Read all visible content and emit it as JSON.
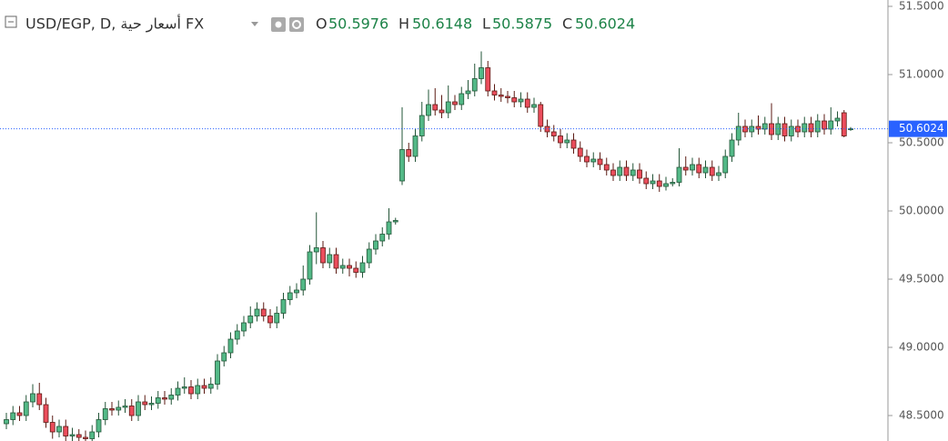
{
  "chart_data": {
    "type": "candlestick",
    "title": "USD/EGP, D, أسعار حية FX",
    "ohlc_labels": [
      "O",
      "H",
      "L",
      "C"
    ],
    "up_color": "#53b987",
    "up_border": "#225437",
    "down_color": "#eb4d5c",
    "down_border": "#5b1a13",
    "price_line_color": "#2962ff",
    "ylim": [
      48.3133,
      51.5467
    ],
    "yticks": [
      {
        "value": 48.5,
        "label": "48.5000"
      },
      {
        "value": 49.0,
        "label": "49.0000"
      },
      {
        "value": 49.5,
        "label": "49.5000"
      },
      {
        "value": 50.0,
        "label": "50.0000"
      },
      {
        "value": 50.5,
        "label": "50.5000"
      },
      {
        "value": 51.0,
        "label": "51.0000"
      },
      {
        "value": 51.5,
        "label": "51.5000"
      }
    ],
    "open": [
      48.44,
      48.47,
      48.52,
      48.5,
      48.6,
      48.66,
      48.58,
      48.45,
      48.38,
      48.42,
      48.35,
      48.36,
      48.34,
      48.33,
      48.38,
      48.47,
      48.55,
      48.54,
      48.56,
      48.57,
      48.5,
      48.6,
      48.58,
      48.59,
      48.63,
      48.62,
      48.65,
      48.7,
      48.71,
      48.66,
      48.72,
      48.7,
      48.73,
      48.9,
      48.96,
      49.06,
      49.12,
      49.18,
      49.23,
      49.28,
      49.23,
      49.18,
      49.25,
      49.35,
      49.4,
      49.42,
      49.5,
      49.7,
      49.73,
      49.62,
      49.68,
      49.58,
      49.6,
      49.58,
      49.55,
      49.62,
      49.72,
      49.78,
      49.83,
      49.92,
      50.22,
      50.45,
      50.4,
      50.55,
      50.7,
      50.78,
      50.74,
      50.72,
      50.8,
      50.78,
      50.86,
      50.88,
      50.97,
      51.05,
      50.88,
      50.85,
      50.84,
      50.83,
      50.8,
      50.82,
      50.76,
      50.78,
      50.62,
      50.58,
      50.55,
      50.5,
      50.52,
      50.46,
      50.4,
      50.36,
      50.38,
      50.34,
      50.3,
      50.26,
      50.32,
      50.26,
      50.3,
      50.24,
      50.2,
      50.22,
      50.18,
      50.2,
      50.21,
      50.32,
      50.3,
      50.34,
      50.28,
      50.32,
      50.26,
      50.28,
      50.4,
      50.52,
      50.62,
      50.58,
      50.62,
      50.6,
      50.64,
      50.56,
      50.64,
      50.55,
      50.62,
      50.58,
      50.64,
      50.58,
      50.66,
      50.6,
      50.66,
      50.72,
      50.5976
    ],
    "high": [
      48.52,
      48.57,
      48.57,
      48.65,
      48.73,
      48.74,
      48.63,
      48.5,
      48.47,
      48.47,
      48.41,
      48.4,
      48.39,
      48.43,
      48.52,
      48.6,
      48.6,
      48.61,
      48.62,
      48.62,
      48.65,
      48.65,
      48.64,
      48.68,
      48.68,
      48.7,
      48.75,
      48.78,
      48.76,
      48.77,
      48.77,
      48.78,
      48.95,
      49.01,
      49.11,
      49.17,
      49.23,
      49.3,
      49.33,
      49.33,
      49.28,
      49.3,
      49.4,
      49.45,
      49.47,
      49.6,
      49.75,
      49.99,
      49.78,
      49.73,
      49.73,
      49.65,
      49.65,
      49.63,
      49.67,
      49.77,
      49.83,
      49.88,
      50.02,
      49.95,
      50.76,
      50.5,
      50.6,
      50.8,
      50.89,
      50.9,
      50.85,
      50.92,
      50.85,
      50.91,
      50.96,
      51.08,
      51.17,
      51.1,
      50.93,
      50.9,
      50.88,
      50.88,
      50.87,
      50.87,
      50.83,
      50.8,
      50.67,
      50.63,
      50.6,
      50.57,
      50.57,
      50.51,
      50.45,
      50.43,
      50.43,
      50.39,
      50.35,
      50.37,
      50.37,
      50.35,
      50.35,
      50.29,
      50.27,
      50.27,
      50.25,
      50.24,
      50.46,
      50.4,
      50.39,
      50.39,
      50.37,
      50.37,
      50.33,
      50.45,
      50.57,
      50.72,
      50.67,
      50.67,
      50.7,
      50.69,
      50.79,
      50.69,
      50.69,
      50.67,
      50.67,
      50.69,
      50.69,
      50.71,
      50.71,
      50.76,
      50.73,
      50.74,
      50.6148
    ],
    "low": [
      48.4,
      48.43,
      48.46,
      48.46,
      48.56,
      48.54,
      48.41,
      48.33,
      48.34,
      48.31,
      48.31,
      48.3,
      48.3,
      48.3,
      48.34,
      48.43,
      48.5,
      48.5,
      48.52,
      48.46,
      48.46,
      48.54,
      48.54,
      48.55,
      48.58,
      48.58,
      48.61,
      48.66,
      48.62,
      48.62,
      48.66,
      48.66,
      48.69,
      48.86,
      48.92,
      49.02,
      49.08,
      49.14,
      49.19,
      49.19,
      49.14,
      49.14,
      49.21,
      49.31,
      49.36,
      49.38,
      49.46,
      49.61,
      49.58,
      49.58,
      49.54,
      49.54,
      49.52,
      49.51,
      49.51,
      49.58,
      49.68,
      49.74,
      49.79,
      49.9,
      50.19,
      50.36,
      50.36,
      50.51,
      50.66,
      50.7,
      50.68,
      50.68,
      50.74,
      50.74,
      50.82,
      50.84,
      50.93,
      50.84,
      50.81,
      50.8,
      50.79,
      50.76,
      50.76,
      50.72,
      50.72,
      50.58,
      50.54,
      50.51,
      50.46,
      50.46,
      50.42,
      50.36,
      50.32,
      50.32,
      50.3,
      50.26,
      50.22,
      50.22,
      50.22,
      50.22,
      50.2,
      50.16,
      50.16,
      50.14,
      50.15,
      50.18,
      50.18,
      50.26,
      50.26,
      50.24,
      50.24,
      50.22,
      50.22,
      50.24,
      50.36,
      50.48,
      50.54,
      50.54,
      50.56,
      50.56,
      50.52,
      50.52,
      50.51,
      50.51,
      50.54,
      50.54,
      50.54,
      50.54,
      50.56,
      50.56,
      50.62,
      50.54,
      50.5875
    ],
    "close": [
      48.47,
      48.52,
      48.5,
      48.6,
      48.66,
      48.58,
      48.45,
      48.38,
      48.42,
      48.35,
      48.36,
      48.34,
      48.33,
      48.38,
      48.47,
      48.55,
      48.54,
      48.56,
      48.57,
      48.5,
      48.6,
      48.58,
      48.59,
      48.63,
      48.62,
      48.65,
      48.7,
      48.71,
      48.66,
      48.72,
      48.7,
      48.73,
      48.9,
      48.96,
      49.06,
      49.12,
      49.18,
      49.23,
      49.28,
      49.23,
      49.18,
      49.25,
      49.35,
      49.4,
      49.42,
      49.5,
      49.7,
      49.73,
      49.62,
      49.68,
      49.58,
      49.6,
      49.58,
      49.55,
      49.62,
      49.72,
      49.78,
      49.83,
      49.92,
      49.93,
      50.45,
      50.4,
      50.55,
      50.7,
      50.78,
      50.74,
      50.72,
      50.8,
      50.78,
      50.86,
      50.88,
      50.97,
      51.05,
      50.88,
      50.85,
      50.84,
      50.83,
      50.8,
      50.82,
      50.76,
      50.78,
      50.62,
      50.58,
      50.55,
      50.5,
      50.52,
      50.46,
      50.4,
      50.36,
      50.38,
      50.34,
      50.3,
      50.26,
      50.32,
      50.26,
      50.3,
      50.24,
      50.2,
      50.22,
      50.18,
      50.2,
      50.21,
      50.32,
      50.3,
      50.34,
      50.28,
      50.32,
      50.26,
      50.28,
      50.4,
      50.52,
      50.62,
      50.58,
      50.62,
      50.6,
      50.64,
      50.56,
      50.64,
      50.55,
      50.62,
      50.58,
      50.64,
      50.58,
      50.66,
      50.6,
      50.66,
      50.68,
      50.55,
      50.6024
    ]
  }
}
